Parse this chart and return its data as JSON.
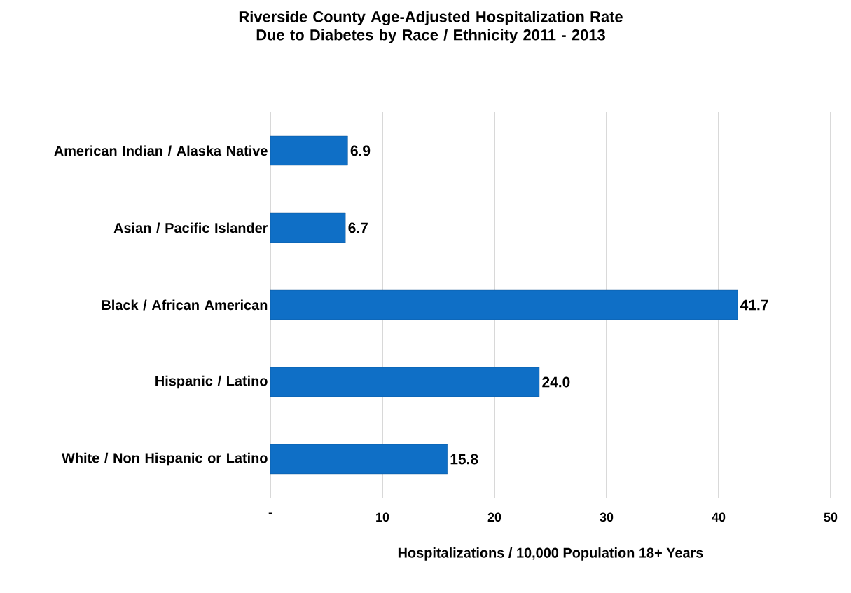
{
  "chart_data": {
    "type": "bar",
    "orientation": "horizontal",
    "title": "Riverside County Age-Adjusted Hospitalization Rate Due to Diabetes by Race / Ethnicity 2011 - 2013",
    "xlabel": "Hospitalizations / 10,000 Population 18+ Years",
    "categories": [
      "American Indian / Alaska Native",
      "Asian / Pacific Islander",
      "Black / African American",
      "Hispanic / Latino",
      "White / Non Hispanic or Latino"
    ],
    "values": [
      6.9,
      6.7,
      41.7,
      24.0,
      15.8
    ],
    "value_labels": [
      "6.9",
      "6.7",
      "41.7",
      "24.0",
      "15.8"
    ],
    "color": "#0f6fc6",
    "xlim": [
      0,
      50
    ],
    "xticks": [
      {
        "value": 0,
        "label": "-"
      },
      10,
      20,
      30,
      40,
      50
    ],
    "grid": "x"
  }
}
